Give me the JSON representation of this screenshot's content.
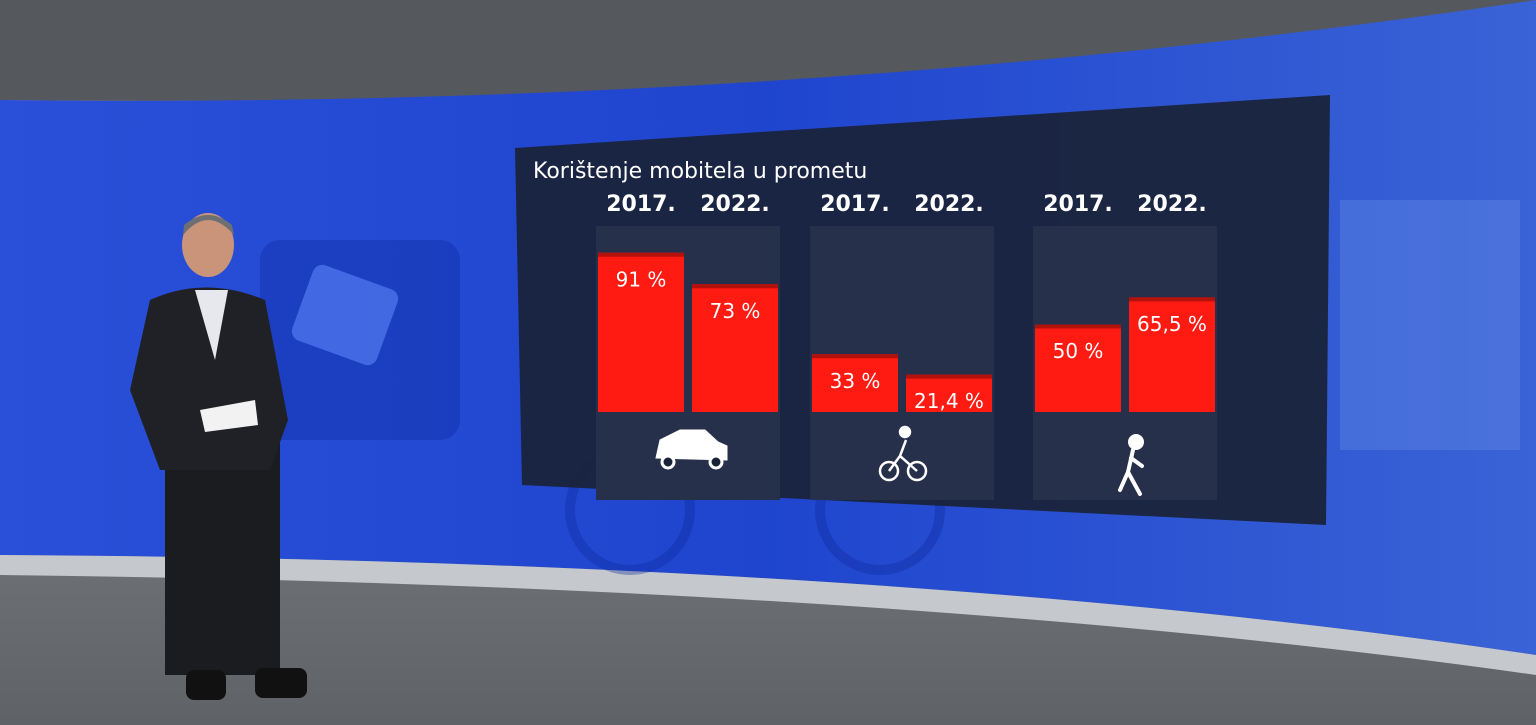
{
  "chart_data": {
    "type": "bar",
    "title": "Korištenje mobitela u prometu",
    "categories": [
      "2017.",
      "2022.",
      "2017.",
      "2022.",
      "2017.",
      "2022."
    ],
    "values": [
      91,
      73,
      33,
      21.4,
      50,
      65.5
    ],
    "value_labels": [
      "91 %",
      "73 %",
      "33 %",
      "21,4 %",
      "50 %",
      "65,5 %"
    ],
    "color": "#ff1a12"
  }
}
